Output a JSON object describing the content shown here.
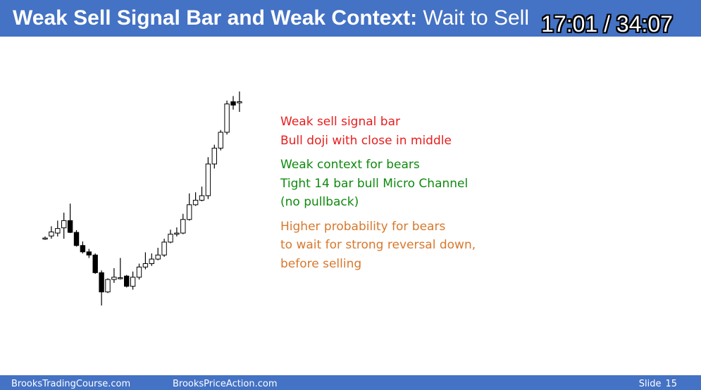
{
  "title": {
    "bold": "Weak Sell Signal Bar and Weak Context:",
    "normal": "Wait to Sell"
  },
  "timestamp": "17:01 / 34:07",
  "notes": [
    {
      "color": "#e81d1d",
      "lines": [
        "Weak sell signal bar",
        "Bull doji with close in middle"
      ]
    },
    {
      "color": "#0f8a0f",
      "lines": [
        "Weak context for bears",
        "Tight 14 bar bull Micro Channel",
        "(no pullback)"
      ]
    },
    {
      "color": "#d8782c",
      "lines": [
        "Higher probability for bears",
        "to wait for strong reversal down,",
        "before selling"
      ]
    }
  ],
  "footer": {
    "left": "BrooksTradingCourse.com",
    "middle": "BrooksPriceAction.com",
    "slide_label": "Slide",
    "slide_number": "15"
  },
  "chart_data": {
    "type": "candlestick",
    "note": "price chart with no axes; values in relative price units (higher = higher price)",
    "bars": [
      {
        "o": 32.0,
        "h": 33.0,
        "l": 31.5,
        "c": 32.3
      },
      {
        "o": 33.2,
        "h": 37.5,
        "l": 32.0,
        "c": 35.0
      },
      {
        "o": 34.5,
        "h": 40.0,
        "l": 33.0,
        "c": 36.5
      },
      {
        "o": 36.8,
        "h": 43.5,
        "l": 32.0,
        "c": 40.0
      },
      {
        "o": 40.0,
        "h": 47.5,
        "l": 34.5,
        "c": 34.8
      },
      {
        "o": 34.8,
        "h": 35.8,
        "l": 28.5,
        "c": 29.0
      },
      {
        "o": 29.0,
        "h": 30.8,
        "l": 25.5,
        "c": 26.2
      },
      {
        "o": 26.2,
        "h": 27.5,
        "l": 23.5,
        "c": 24.8
      },
      {
        "o": 24.8,
        "h": 25.5,
        "l": 16.5,
        "c": 17.0
      },
      {
        "o": 17.0,
        "h": 18.0,
        "l": 2.5,
        "c": 8.5
      },
      {
        "o": 8.5,
        "h": 14.5,
        "l": 8.0,
        "c": 14.0
      },
      {
        "o": 14.0,
        "h": 19.0,
        "l": 12.5,
        "c": 15.0
      },
      {
        "o": 14.8,
        "h": 23.5,
        "l": 14.0,
        "c": 14.8
      },
      {
        "o": 15.5,
        "h": 16.0,
        "l": 10.5,
        "c": 11.0
      },
      {
        "o": 11.0,
        "h": 17.5,
        "l": 9.5,
        "c": 15.0
      },
      {
        "o": 15.0,
        "h": 21.0,
        "l": 14.0,
        "c": 19.5
      },
      {
        "o": 19.5,
        "h": 26.0,
        "l": 18.5,
        "c": 21.0
      },
      {
        "o": 21.0,
        "h": 25.5,
        "l": 20.0,
        "c": 23.0
      },
      {
        "o": 23.0,
        "h": 28.0,
        "l": 22.5,
        "c": 24.8
      },
      {
        "o": 24.8,
        "h": 32.0,
        "l": 24.0,
        "c": 30.5
      },
      {
        "o": 30.5,
        "h": 36.0,
        "l": 30.0,
        "c": 34.0
      },
      {
        "o": 34.0,
        "h": 37.0,
        "l": 33.0,
        "c": 34.5
      },
      {
        "o": 34.5,
        "h": 43.0,
        "l": 34.0,
        "c": 40.5
      },
      {
        "o": 40.5,
        "h": 52.0,
        "l": 40.0,
        "c": 47.0
      },
      {
        "o": 47.0,
        "h": 52.5,
        "l": 46.5,
        "c": 49.0
      },
      {
        "o": 49.0,
        "h": 55.0,
        "l": 48.5,
        "c": 51.0
      },
      {
        "o": 51.0,
        "h": 68.0,
        "l": 49.5,
        "c": 65.0
      },
      {
        "o": 65.0,
        "h": 73.5,
        "l": 63.0,
        "c": 72.0
      },
      {
        "o": 72.0,
        "h": 80.0,
        "l": 71.0,
        "c": 79.0
      },
      {
        "o": 79.0,
        "h": 93.0,
        "l": 78.0,
        "c": 91.5
      },
      {
        "o": 92.5,
        "h": 95.0,
        "l": 89.0,
        "c": 91.0
      },
      {
        "o": 92.0,
        "h": 97.0,
        "l": 88.0,
        "c": 92.5
      }
    ]
  }
}
